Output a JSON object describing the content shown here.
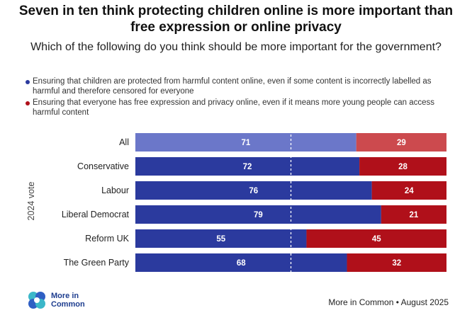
{
  "title": "Seven in ten think protecting children online is more important than free expression or online privacy",
  "subtitle": "Which of the following do you think should be more important for the government?",
  "legend": [
    {
      "label": "Ensuring that children are protected from harmful content online, even if some content is incorrectly labelled as harmful and therefore censored for everyone",
      "color": "#2b3a9e"
    },
    {
      "label": "Ensuring that everyone has free expression and privacy online, even if it means more young people can access harmful content",
      "color": "#b0101a"
    }
  ],
  "footer": {
    "logo_text": "More in Common",
    "source": "More in Common • August 2025"
  },
  "chart_data": {
    "type": "bar",
    "orientation": "horizontal",
    "stacked": true,
    "percent_stacked": true,
    "ylabel": "2024 vote",
    "categories": [
      "All",
      "Conservative",
      "Labour",
      "Liberal Democrat",
      "Reform UK",
      "The Green Party"
    ],
    "series": [
      {
        "name": "Ensuring that children are protected from harmful content online, even if some content is incorrectly labelled as harmful and therefore censored for everyone",
        "color": "#2b3a9e",
        "highlight_color": "#6b77c9",
        "values": [
          71,
          72,
          76,
          79,
          55,
          68
        ]
      },
      {
        "name": "Ensuring that everyone has free expression and privacy online, even if it means more young people can access harmful content",
        "color": "#b0101a",
        "highlight_color": "#cc4a4e",
        "values": [
          29,
          28,
          24,
          21,
          45,
          32
        ]
      }
    ],
    "xlim": [
      0,
      100
    ],
    "reference_line": 50
  }
}
